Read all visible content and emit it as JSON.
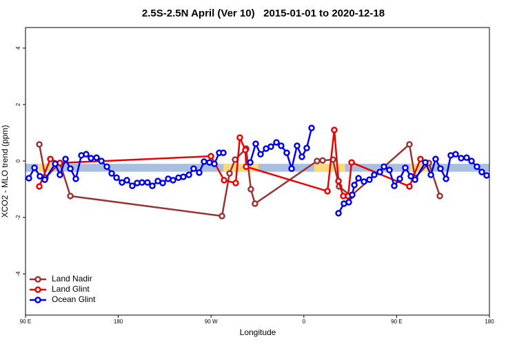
{
  "chart_data": {
    "type": "line",
    "title": "2.5S-2.5N April (Ver 10)   2015-01-01 to 2020-12-18",
    "xlabel": "Longitude",
    "ylabel": "XCO2 - MLO trend (ppm)",
    "xlim": [
      90,
      540
    ],
    "ylim": [
      -5.46,
      4.73
    ],
    "xticks": [
      {
        "value": 90,
        "label": "90 E"
      },
      180,
      {
        "value": 270,
        "label": "90 W"
      },
      {
        "value": 360,
        "label": "0"
      },
      {
        "value": 450,
        "label": "90 E"
      },
      {
        "value": 540,
        "label": "180"
      }
    ],
    "yticks": [
      -4,
      -2,
      0,
      2,
      4
    ],
    "legend": "bottom-left",
    "band": {
      "range": [
        -0.38,
        -0.1
      ],
      "color": "#a8bfe0"
    },
    "highlights": {
      "color": "#ffd87f",
      "ranges": [
        [
          102,
          119
        ],
        [
          282,
          316
        ],
        [
          370,
          400
        ],
        [
          463,
          483
        ]
      ]
    },
    "series": [
      {
        "name": "Land Nadir",
        "color": "#993333",
        "x": [
          103.4,
          109.4,
          123.4,
          133.5,
          280.6,
          287.9,
          293.3,
          304,
          308.6,
          312.6,
          372.8,
          378.2,
          388.2,
          394.2,
          405.6,
          462.4,
          467.8,
          481.2,
          491.9
        ],
        "values": [
          0.59,
          -0.59,
          -0.07,
          -1.24,
          -1.95,
          -0.44,
          0.05,
          0.44,
          -1.0,
          -1.51,
          0,
          0.02,
          0.05,
          -0.9,
          -1.24,
          0.59,
          -0.59,
          -0.07,
          -1.24
        ]
      },
      {
        "name": "Land Glint",
        "color": "#ee0000",
        "x": [
          103.4,
          114.1,
          123.4,
          269.9,
          282.6,
          293.9,
          297.9,
          303.3,
          304,
          382.9,
          389.5,
          393.6,
          398.2,
          402.9,
          406.3,
          462.4,
          473.1
        ],
        "values": [
          -0.9,
          0.07,
          -0.07,
          0.17,
          -0.68,
          -0.78,
          0.83,
          0.39,
          -0.2,
          -1.07,
          1.1,
          -0.71,
          -1.24,
          -1.24,
          -0.05,
          -0.9,
          0.07
        ]
      },
      {
        "name": "Ocean Glint",
        "color": "#0000ee",
        "x": [
          93.3,
          98.7,
          104,
          108.7,
          118.8,
          123.4,
          128.8,
          133.5,
          138.8,
          144.2,
          148.8,
          153.5,
          158.9,
          163.6,
          168.9,
          173.6,
          178.3,
          183.6,
          188.3,
          193.6,
          198.3,
          203,
          208.3,
          213,
          218.4,
          223.1,
          228.4,
          233.1,
          238.4,
          243.1,
          248.5,
          253.1,
          258.5,
          263.2,
          268.5,
          273.2,
          277.9,
          281.9,
          295,
          308,
          313.3,
          318,
          323.4,
          328,
          333.4,
          338,
          343.4,
          348.1,
          353.4,
          358.1,
          362.8,
          367.5,
          380,
          393.6,
          398.9,
          403.6,
          406.9,
          409,
          413,
          418.3,
          423.6,
          428.3,
          433.7,
          437.7,
          443,
          447.7,
          453.1,
          458.4,
          463.8,
          467.8,
          477.8,
          483.2,
          487.8,
          492.5,
          497.9,
          502.5,
          507.2,
          512.6,
          517.9,
          522.6,
          527.9,
          532.6,
          537.3
        ],
        "values": [
          -0.61,
          -0.24,
          -0.54,
          -0.66,
          -0.1,
          -0.49,
          0.07,
          -0.27,
          -0.63,
          0.2,
          0.24,
          0.1,
          0.12,
          0,
          -0.2,
          -0.44,
          -0.59,
          -0.76,
          -0.68,
          -0.88,
          -0.78,
          -0.76,
          -0.76,
          -0.88,
          -0.71,
          -0.78,
          -0.63,
          -0.68,
          -0.59,
          -0.56,
          -0.49,
          -0.27,
          -0.41,
          -0.02,
          -0.05,
          -0.1,
          0.29,
          0.29,
          null,
          -0.05,
          0.61,
          0.24,
          0.44,
          0.51,
          0.66,
          0.54,
          0.29,
          -0.27,
          0.54,
          0.15,
          0.46,
          1.17,
          null,
          -1.85,
          -1.51,
          -1.46,
          -1.2,
          -0.85,
          -0.61,
          -0.73,
          -0.66,
          -0.49,
          -0.39,
          -0.2,
          -0.32,
          -0.88,
          -0.63,
          -0.24,
          -0.54,
          -0.66,
          -0.05,
          -0.49,
          0.07,
          -0.27,
          -0.63,
          0.2,
          0.24,
          0.1,
          0.12,
          0,
          -0.2,
          -0.39,
          -0.51
        ]
      }
    ]
  }
}
